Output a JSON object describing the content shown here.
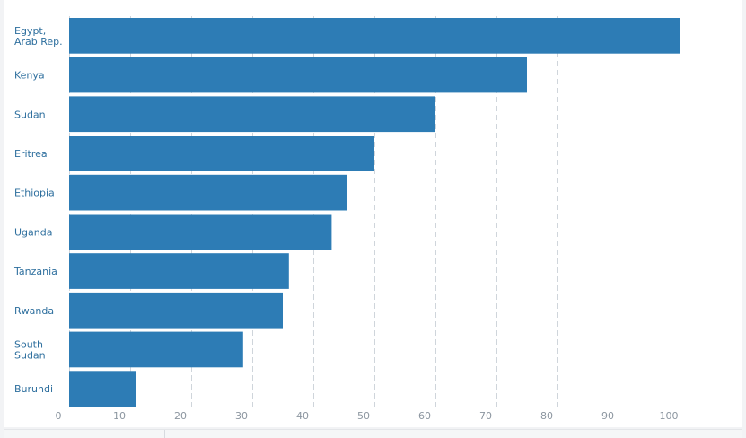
{
  "colors": {
    "bar": "#2d7cb5",
    "category_text": "#2e6f9e",
    "tick_text": "#8c96a0",
    "grid": "#cfd5db"
  },
  "chart_data": {
    "type": "bar",
    "orientation": "horizontal",
    "title": "",
    "xlabel": "",
    "ylabel": "",
    "categories": [
      [
        "Egypt,",
        "Arab Rep."
      ],
      [
        "Kenya"
      ],
      [
        "Sudan"
      ],
      [
        "Eritrea"
      ],
      [
        "Ethiopia"
      ],
      [
        "Uganda"
      ],
      [
        "Tanzania"
      ],
      [
        "Rwanda"
      ],
      [
        "South",
        "Sudan"
      ],
      [
        "Burundi"
      ]
    ],
    "values": [
      100,
      75,
      60,
      50,
      45.5,
      43,
      36,
      35,
      28.5,
      11
    ],
    "xlim": [
      0,
      100
    ],
    "xticks": [
      0,
      10,
      20,
      30,
      40,
      50,
      60,
      70,
      80,
      90,
      100
    ],
    "grid": true
  }
}
